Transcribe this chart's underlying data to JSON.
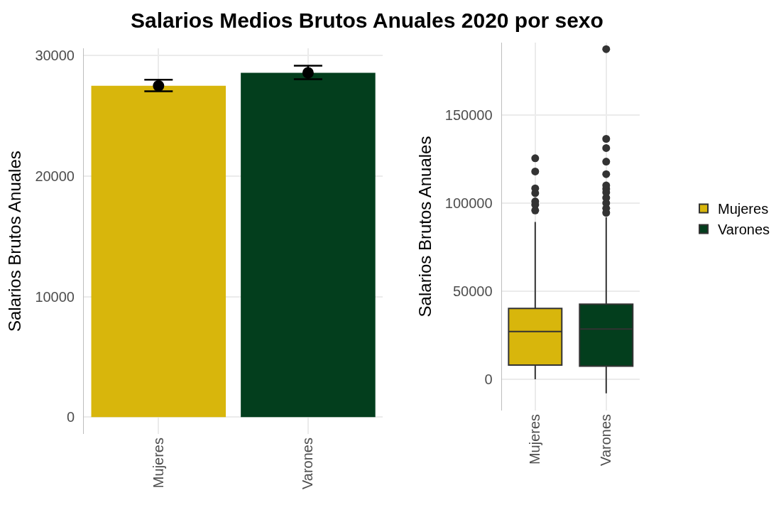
{
  "chart_data": [
    {
      "type": "bar",
      "title": "Salarios Medios Brutos Anuales 2020 por sexo",
      "ylabel": "Salarios Brutos Anuales",
      "categories": [
        "Mujeres",
        "Varones"
      ],
      "ylim": [
        -1400,
        30600
      ],
      "yticks": [
        0,
        10000,
        20000,
        30000
      ],
      "grid": true,
      "legend": false,
      "series": [
        {
          "colors": [
            "#d8b60c",
            "#033e1d"
          ],
          "values": [
            27500,
            28580
          ]
        },
        {
          "type": "scatter",
          "color": "#000000",
          "marker": "circle",
          "values": [
            27500,
            28580
          ],
          "errors": [
            [
              27050,
              28000
            ],
            [
              28050,
              29170
            ]
          ]
        }
      ]
    },
    {
      "type": "box",
      "ylabel": "Salarios Brutos Anuales",
      "categories": [
        "Mujeres",
        "Varones"
      ],
      "ylim": [
        -17700,
        191000
      ],
      "yticks": [
        0,
        50000,
        100000,
        150000
      ],
      "grid": true,
      "legend": "right",
      "series": [
        {
          "name": "Mujeres",
          "color": "#d8b60c",
          "boxes": [
            {
              "low": 0,
              "q1": 8100,
              "median": 27100,
              "q3": 40200,
              "high": 89300,
              "outliers": [
                95800,
                99000,
                100900,
                105600,
                108300,
                117900,
                125400
              ]
            },
            null
          ]
        },
        {
          "name": "Varones",
          "color": "#033e1d",
          "boxes": [
            null,
            {
              "low": -8000,
              "q1": 7500,
              "median": 28500,
              "q3": 42600,
              "high": 92000,
              "outliers": [
                94500,
                97000,
                100000,
                103000,
                106000,
                108000,
                110000,
                116400,
                123500,
                131200,
                136400,
                187300
              ]
            }
          ]
        }
      ]
    }
  ]
}
